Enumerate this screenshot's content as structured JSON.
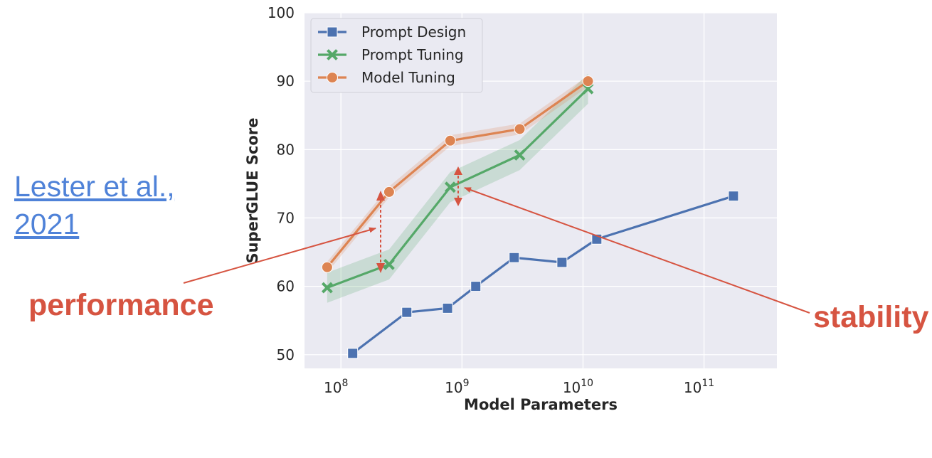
{
  "citation": {
    "line1": "Lester et al.,",
    "line2": "2021"
  },
  "annotations": {
    "performance": "performance",
    "stability": "stability",
    "color": "#d65441"
  },
  "chart_data": {
    "type": "line",
    "title": "",
    "xlabel": "Model Parameters",
    "ylabel": "SuperGLUE Score",
    "xscale": "log",
    "xlim": [
      50000000,
      400000000000
    ],
    "ylim": [
      48,
      100
    ],
    "yticks": [
      50,
      60,
      70,
      80,
      90,
      100
    ],
    "xticks": [
      {
        "value": 100000000,
        "base": "10",
        "exp": "8"
      },
      {
        "value": 1000000000,
        "base": "10",
        "exp": "9"
      },
      {
        "value": 10000000000,
        "base": "10",
        "exp": "10"
      },
      {
        "value": 100000000000,
        "base": "10",
        "exp": "11"
      }
    ],
    "grid": true,
    "legend_position": "top-left",
    "background": "#eaeaf2",
    "series": [
      {
        "name": "Prompt Design",
        "color": "#4c72b0",
        "marker": "square",
        "x": [
          125000000,
          350000000,
          760000000,
          1300000000,
          2700000000,
          6700000000,
          13000000000,
          175000000000
        ],
        "y": [
          50.2,
          56.2,
          56.8,
          60.0,
          64.2,
          63.5,
          66.9,
          73.2
        ]
      },
      {
        "name": "Prompt Tuning",
        "color": "#55a868",
        "marker": "x",
        "band": 2.2,
        "x": [
          77000000,
          250000000,
          800000000,
          3000000000,
          11000000000
        ],
        "y": [
          59.8,
          63.2,
          74.5,
          79.2,
          88.9
        ]
      },
      {
        "name": "Model Tuning",
        "color": "#dd8452",
        "marker": "circle",
        "band": 0.8,
        "x": [
          77000000,
          250000000,
          800000000,
          3000000000,
          11000000000
        ],
        "y": [
          62.8,
          73.8,
          81.3,
          83.0,
          90.0
        ]
      }
    ]
  }
}
